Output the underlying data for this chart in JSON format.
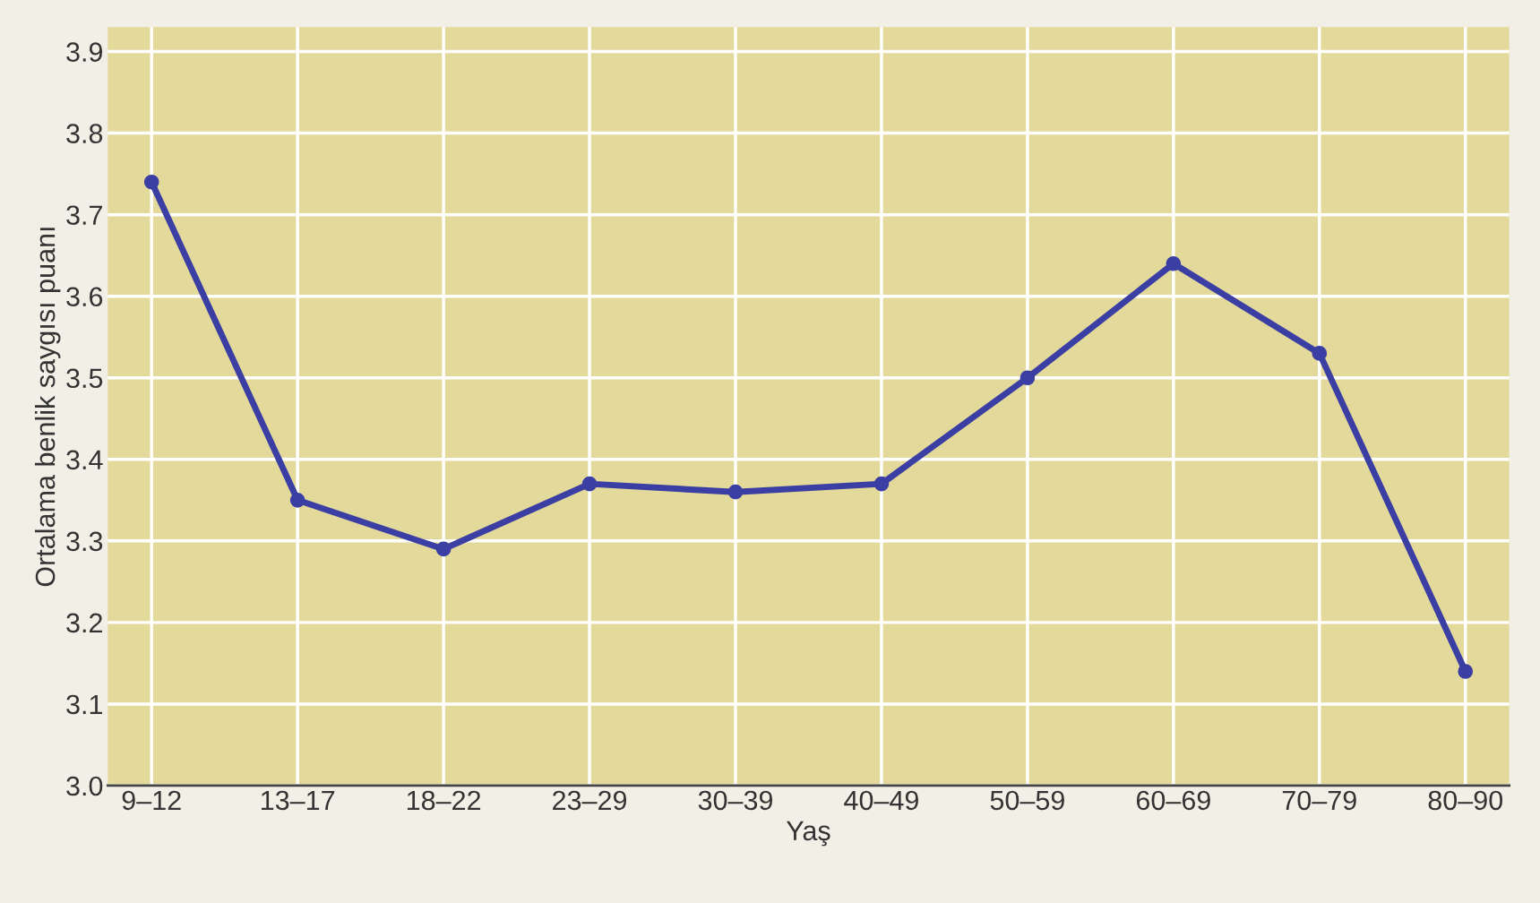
{
  "chart_data": {
    "type": "line",
    "xlabel": "Yaş",
    "ylabel": "Ortalama benlik saygısı puanı",
    "categories": [
      "9–12",
      "13–17",
      "18–22",
      "23–29",
      "30–39",
      "40–49",
      "50–59",
      "60–69",
      "70–79",
      "80–90"
    ],
    "series": [
      {
        "color": "#3b3fa3",
        "values": [
          3.74,
          3.35,
          3.29,
          3.37,
          3.36,
          3.37,
          3.5,
          3.64,
          3.53,
          3.14
        ]
      }
    ],
    "ylim": [
      3.0,
      3.93
    ],
    "yticks": [
      {
        "value": 3.0,
        "label": "3.0"
      },
      {
        "value": 3.1,
        "label": "3.1"
      },
      {
        "value": 3.2,
        "label": "3.2"
      },
      {
        "value": 3.3,
        "label": "3.3"
      },
      {
        "value": 3.4,
        "label": "3.4"
      },
      {
        "value": 3.5,
        "label": "3.5"
      },
      {
        "value": 3.6,
        "label": "3.6"
      },
      {
        "value": 3.7,
        "label": "3.7"
      },
      {
        "value": 3.8,
        "label": "3.8"
      },
      {
        "value": 3.9,
        "label": "3.9"
      }
    ],
    "grid": true,
    "marker": "circle",
    "line_style": "solid",
    "legend": false
  }
}
